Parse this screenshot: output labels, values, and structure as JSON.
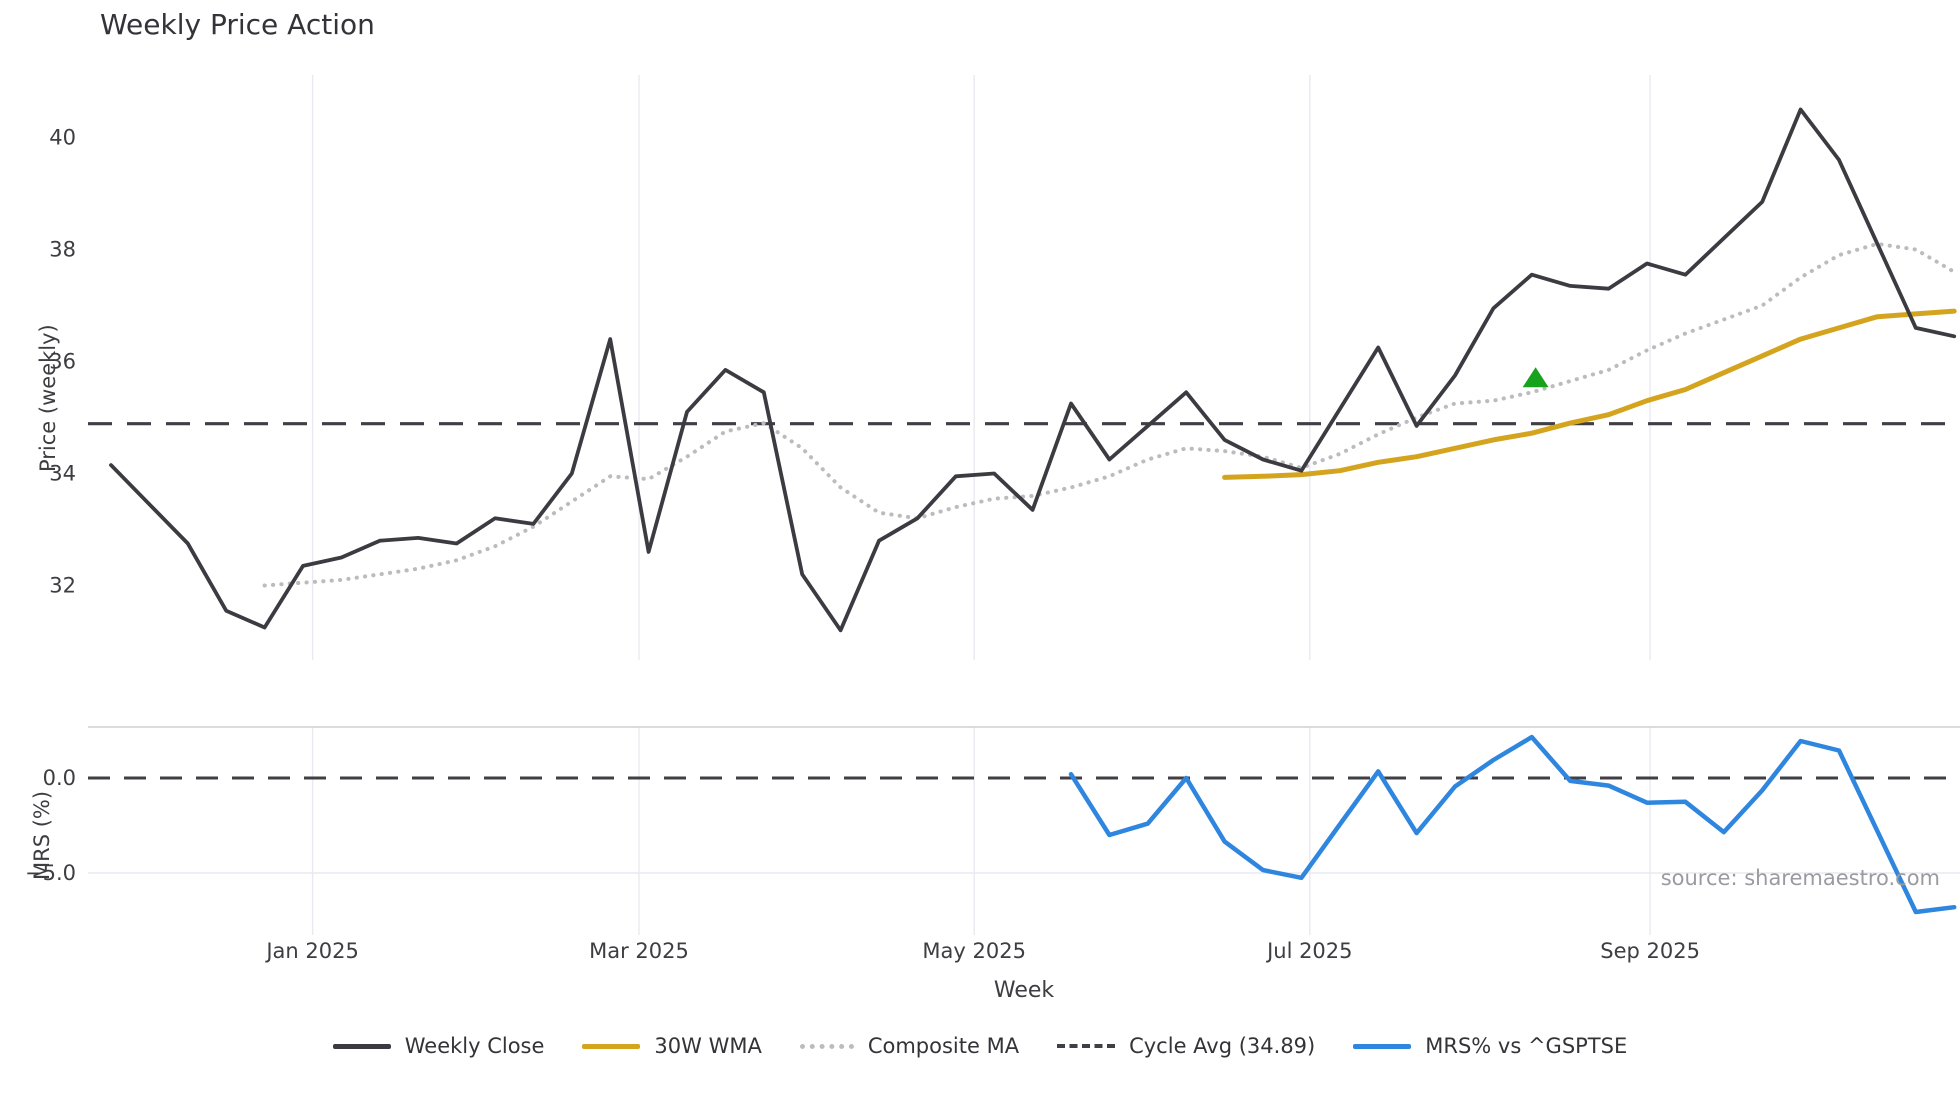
{
  "title": "Weekly Price Action",
  "source": "source: sharemaestro.com",
  "axes": {
    "price_ylabel": "Price (weekly)",
    "mrs_ylabel": "MRS (%)",
    "xlabel": "Week"
  },
  "colors": {
    "background": "#ffffff",
    "close_line": "#3b3b41",
    "wma_line": "#d5a41f",
    "composite_line": "#bcbcc0",
    "cycle_avg_line": "#3f3f45",
    "mrs_line": "#2e86de",
    "signal_green": "#17a21d",
    "gridline": "#e9e9f1",
    "panel_border": "#d0d0d0",
    "tick_text": "#3d3d42",
    "source_text": "#9a9ba1"
  },
  "x_ticks": [
    {
      "label": "Jan 2025",
      "week_index": 5.25
    },
    {
      "label": "Mar 2025",
      "week_index": 13.75
    },
    {
      "label": "May 2025",
      "week_index": 22.48
    },
    {
      "label": "Jul 2025",
      "week_index": 31.22
    },
    {
      "label": "Sep 2025",
      "week_index": 40.08
    }
  ],
  "legend": {
    "position": "bottom-center",
    "items": [
      {
        "label": "Weekly Close",
        "style": "solid",
        "color": "#3b3b41"
      },
      {
        "label": "30W WMA",
        "style": "solid",
        "color": "#d5a41f"
      },
      {
        "label": "Composite MA",
        "style": "dotted",
        "color": "#bcbcc0"
      },
      {
        "label": "Cycle Avg (34.89)",
        "style": "dashed",
        "color": "#3f3f45"
      },
      {
        "label": "MRS% vs ^GSPTSE",
        "style": "solid",
        "color": "#2e86de"
      }
    ]
  },
  "chart_data": [
    {
      "type": "line",
      "panel": "price",
      "title": "Weekly Price Action",
      "xlabel": "Week",
      "ylabel": "Price (weekly)",
      "ylim": [
        30.67,
        41.12
      ],
      "yticks": [
        40,
        38,
        36,
        34,
        32
      ],
      "ytick_labels": [
        "40",
        "38",
        "36",
        "34",
        "32"
      ],
      "grid": "vertical-only",
      "cycle_avg": 34.89,
      "x_dates": [
        "2024-11-25",
        "2024-12-02",
        "2024-12-09",
        "2024-12-16",
        "2024-12-23",
        "2024-12-30",
        "2025-01-06",
        "2025-01-13",
        "2025-01-20",
        "2025-01-27",
        "2025-02-03",
        "2025-02-10",
        "2025-02-17",
        "2025-02-24",
        "2025-03-03",
        "2025-03-10",
        "2025-03-17",
        "2025-03-24",
        "2025-03-31",
        "2025-04-07",
        "2025-04-14",
        "2025-04-21",
        "2025-04-28",
        "2025-05-05",
        "2025-05-12",
        "2025-05-19",
        "2025-05-26",
        "2025-06-02",
        "2025-06-09",
        "2025-06-16",
        "2025-06-23",
        "2025-06-30",
        "2025-07-07",
        "2025-07-14",
        "2025-07-21",
        "2025-07-28",
        "2025-08-04",
        "2025-08-11",
        "2025-08-18",
        "2025-08-25",
        "2025-09-01",
        "2025-09-08",
        "2025-09-15",
        "2025-09-22",
        "2025-09-29",
        "2025-10-06",
        "2025-10-13",
        "2025-10-20",
        "2025-10-27"
      ],
      "series": [
        {
          "name": "Weekly Close",
          "start_index": 0,
          "values": [
            34.15,
            33.45,
            32.75,
            31.55,
            31.25,
            32.35,
            32.5,
            32.8,
            32.85,
            32.75,
            33.2,
            33.1,
            34.0,
            36.4,
            32.6,
            35.1,
            35.85,
            35.45,
            32.2,
            31.2,
            32.8,
            33.2,
            33.95,
            34.0,
            33.35,
            35.25,
            34.25,
            34.85,
            35.45,
            34.6,
            34.25,
            34.05,
            35.15,
            36.25,
            34.85,
            35.75,
            36.95,
            37.55,
            37.35,
            37.3,
            37.75,
            37.55,
            38.2,
            38.85,
            40.5,
            39.6,
            38.1,
            36.6,
            36.45
          ]
        },
        {
          "name": "30W WMA",
          "start_index": 29,
          "values": [
            33.93,
            33.95,
            33.98,
            34.05,
            34.2,
            34.3,
            34.45,
            34.6,
            34.72,
            34.9,
            35.05,
            35.3,
            35.5,
            35.8,
            36.1,
            36.4,
            36.6,
            36.8,
            36.85,
            36.9
          ]
        },
        {
          "name": "Composite MA",
          "start_index": 4,
          "values": [
            32.0,
            32.05,
            32.1,
            32.2,
            32.3,
            32.45,
            32.7,
            33.05,
            33.5,
            33.95,
            33.9,
            34.3,
            34.75,
            34.9,
            34.45,
            33.75,
            33.3,
            33.2,
            33.4,
            33.55,
            33.6,
            33.75,
            33.95,
            34.25,
            34.45,
            34.4,
            34.3,
            34.1,
            34.35,
            34.7,
            35.0,
            35.25,
            35.3,
            35.45,
            35.65,
            35.85,
            36.2,
            36.5,
            36.75,
            37.0,
            37.5,
            37.9,
            38.1,
            38.0,
            37.6
          ]
        }
      ],
      "marker": {
        "shape": "triangle-up",
        "date": "2025-08-11",
        "week_index": 37.1,
        "price": 35.7,
        "color": "#17a21d"
      }
    },
    {
      "type": "line",
      "panel": "mrs",
      "ylabel": "MRS (%)",
      "ylim": [
        -8.26,
        2.68
      ],
      "yticks": [
        0.0,
        -5.0
      ],
      "ytick_labels": [
        "0.0",
        "−5.0"
      ],
      "zero_line_dashed": true,
      "series": [
        {
          "name": "MRS% vs ^GSPTSE",
          "start_index": 25,
          "values": [
            0.2,
            -3.0,
            -2.4,
            0.0,
            -3.35,
            -4.85,
            -5.25,
            -2.45,
            0.35,
            -2.9,
            -0.45,
            0.95,
            2.15,
            -0.15,
            -0.4,
            -1.3,
            -1.25,
            -2.85,
            -0.65,
            1.95,
            1.45,
            -2.8,
            -7.05,
            -6.8
          ]
        }
      ]
    }
  ]
}
